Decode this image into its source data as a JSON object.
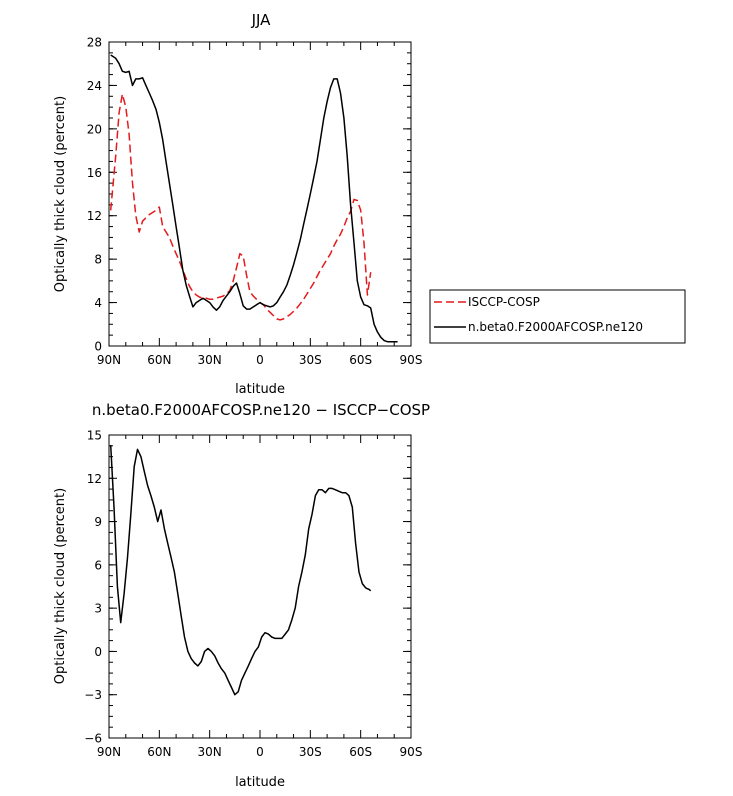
{
  "chart_data": [
    {
      "type": "line",
      "title": "JJA",
      "xlabel": "latitude",
      "ylabel": "Optically thick cloud (percent)",
      "xlim": [
        90,
        -90
      ],
      "ylim": [
        0,
        28
      ],
      "xticks": [
        90,
        60,
        30,
        0,
        -30,
        -60,
        -90
      ],
      "xtick_labels": [
        "90N",
        "60N",
        "30N",
        "0",
        "30S",
        "60S",
        "90S"
      ],
      "yticks": [
        0,
        4,
        8,
        12,
        16,
        20,
        24,
        28
      ],
      "ytick_labels": [
        "0",
        "4",
        "8",
        "12",
        "16",
        "20",
        "24",
        "28"
      ],
      "legend_position": "right",
      "series": [
        {
          "name": "ISCCP-COSP",
          "color": "#e41a1c",
          "dash": "dashed",
          "x": [
            89,
            86,
            84,
            82,
            80,
            78,
            76,
            74,
            72,
            70,
            68,
            66,
            64,
            62,
            60,
            58,
            56,
            54,
            52,
            50,
            48,
            46,
            44,
            42,
            40,
            38,
            36,
            34,
            32,
            30,
            28,
            26,
            24,
            22,
            20,
            18,
            16,
            14,
            12,
            10,
            8,
            6,
            4,
            2,
            0,
            -2,
            -4,
            -6,
            -8,
            -10,
            -12,
            -14,
            -16,
            -18,
            -20,
            -22,
            -24,
            -26,
            -28,
            -30,
            -32,
            -34,
            -36,
            -38,
            -40,
            -42,
            -44,
            -46,
            -48,
            -50,
            -52,
            -54,
            -56,
            -58,
            -60,
            -62,
            -64,
            -66
          ],
          "y": [
            12.5,
            17.5,
            21.5,
            23.2,
            22.0,
            19.5,
            15.0,
            12.0,
            10.5,
            11.5,
            11.8,
            12.1,
            12.3,
            12.5,
            12.8,
            11.0,
            10.5,
            10.0,
            9.2,
            8.5,
            7.8,
            7.0,
            6.2,
            5.5,
            5.0,
            4.7,
            4.5,
            4.4,
            4.4,
            4.3,
            4.3,
            4.4,
            4.5,
            4.6,
            4.8,
            5.1,
            6.0,
            7.2,
            8.5,
            8.3,
            6.5,
            5.0,
            4.6,
            4.3,
            4.0,
            3.8,
            3.4,
            3.1,
            2.8,
            2.5,
            2.4,
            2.5,
            2.7,
            2.9,
            3.2,
            3.5,
            3.9,
            4.3,
            4.8,
            5.3,
            5.8,
            6.4,
            7.0,
            7.5,
            8.0,
            8.5,
            9.2,
            9.8,
            10.3,
            11.0,
            11.8,
            12.4,
            13.5,
            13.4,
            12.5,
            9.5,
            4.7,
            6.8
          ]
        },
        {
          "name": "n.beta0.F2000AFCOSP.ne120",
          "color": "#000000",
          "dash": "solid",
          "x": [
            89,
            86,
            84,
            82,
            80,
            78,
            76,
            74,
            72,
            70,
            68,
            66,
            64,
            62,
            60,
            58,
            56,
            54,
            52,
            50,
            48,
            46,
            44,
            42,
            40,
            38,
            36,
            34,
            32,
            30,
            28,
            26,
            24,
            22,
            20,
            18,
            16,
            14,
            12,
            10,
            8,
            6,
            4,
            2,
            0,
            -2,
            -4,
            -6,
            -8,
            -10,
            -12,
            -14,
            -16,
            -18,
            -20,
            -22,
            -24,
            -26,
            -28,
            -30,
            -32,
            -34,
            -36,
            -38,
            -40,
            -42,
            -44,
            -46,
            -48,
            -50,
            -52,
            -54,
            -56,
            -58,
            -60,
            -62,
            -64,
            -66,
            -68,
            -70,
            -72,
            -74,
            -76,
            -78,
            -80,
            -82
          ],
          "y": [
            26.8,
            26.5,
            26.0,
            25.3,
            25.2,
            25.3,
            24.0,
            24.6,
            24.6,
            24.7,
            24.0,
            23.3,
            22.6,
            21.8,
            20.6,
            19.0,
            17.0,
            15.0,
            13.0,
            11.0,
            9.0,
            7.0,
            5.6,
            4.6,
            3.6,
            4.0,
            4.2,
            4.4,
            4.2,
            4.0,
            3.6,
            3.3,
            3.6,
            4.2,
            4.6,
            5.0,
            5.5,
            5.8,
            4.8,
            3.7,
            3.4,
            3.4,
            3.6,
            3.8,
            4.0,
            3.8,
            3.7,
            3.6,
            3.7,
            4.0,
            4.5,
            5.0,
            5.6,
            6.5,
            7.5,
            8.6,
            9.8,
            11.2,
            12.6,
            14.0,
            15.5,
            17.0,
            19.0,
            21.0,
            22.5,
            23.8,
            24.6,
            24.6,
            23.3,
            21.0,
            17.5,
            13.0,
            9.5,
            6.0,
            4.5,
            3.8,
            3.7,
            3.5,
            2.0,
            1.3,
            0.8,
            0.5,
            0.4,
            0.4,
            0.4,
            0.4
          ]
        }
      ]
    },
    {
      "type": "line",
      "title": "n.beta0.F2000AFCOSP.ne120 − ISCCP−COSP",
      "xlabel": "latitude",
      "ylabel": "Optically thick cloud (percent)",
      "xlim": [
        90,
        -90
      ],
      "ylim": [
        -6,
        15
      ],
      "xticks": [
        90,
        60,
        30,
        0,
        -30,
        -60,
        -90
      ],
      "xtick_labels": [
        "90N",
        "60N",
        "30N",
        "0",
        "30S",
        "60S",
        "90S"
      ],
      "yticks": [
        -6,
        -3,
        0,
        3,
        6,
        9,
        12,
        15
      ],
      "ytick_labels": [
        "−6",
        "−3",
        "0",
        "3",
        "6",
        "9",
        "12",
        "15"
      ],
      "series": [
        {
          "color": "#000000",
          "dash": "solid",
          "x": [
            89,
            87,
            85,
            83,
            81,
            79,
            77,
            75,
            73,
            71,
            69,
            67,
            65,
            63,
            61,
            59,
            57,
            55,
            53,
            51,
            49,
            47,
            45,
            43,
            41,
            39,
            37,
            35,
            33,
            31,
            29,
            27,
            25,
            23,
            21,
            19,
            17,
            15,
            13,
            11,
            9,
            7,
            5,
            3,
            1,
            -1,
            -3,
            -5,
            -7,
            -9,
            -11,
            -13,
            -15,
            -17,
            -19,
            -21,
            -23,
            -25,
            -27,
            -29,
            -31,
            -33,
            -35,
            -37,
            -39,
            -41,
            -43,
            -45,
            -47,
            -49,
            -51,
            -53,
            -55,
            -57,
            -59,
            -61,
            -63,
            -65,
            -66
          ],
          "y": [
            14.3,
            10.0,
            4.5,
            2.0,
            4.0,
            6.5,
            9.5,
            12.8,
            14.0,
            13.5,
            12.5,
            11.5,
            10.8,
            10.0,
            9.0,
            9.8,
            8.5,
            7.5,
            6.5,
            5.5,
            4.0,
            2.5,
            1.0,
            0.0,
            -0.5,
            -0.8,
            -1.0,
            -0.7,
            0.0,
            0.2,
            0.0,
            -0.3,
            -0.8,
            -1.2,
            -1.5,
            -2.0,
            -2.5,
            -3.0,
            -2.8,
            -2.0,
            -1.5,
            -1.0,
            -0.5,
            0.0,
            0.3,
            1.0,
            1.3,
            1.2,
            1.0,
            0.9,
            0.9,
            0.9,
            1.2,
            1.5,
            2.2,
            3.0,
            4.5,
            5.5,
            6.7,
            8.5,
            9.5,
            10.8,
            11.2,
            11.2,
            11.0,
            11.3,
            11.3,
            11.2,
            11.1,
            11.0,
            11.0,
            10.8,
            10.0,
            7.5,
            5.5,
            4.7,
            4.4,
            4.3,
            4.2
          ]
        }
      ]
    }
  ]
}
